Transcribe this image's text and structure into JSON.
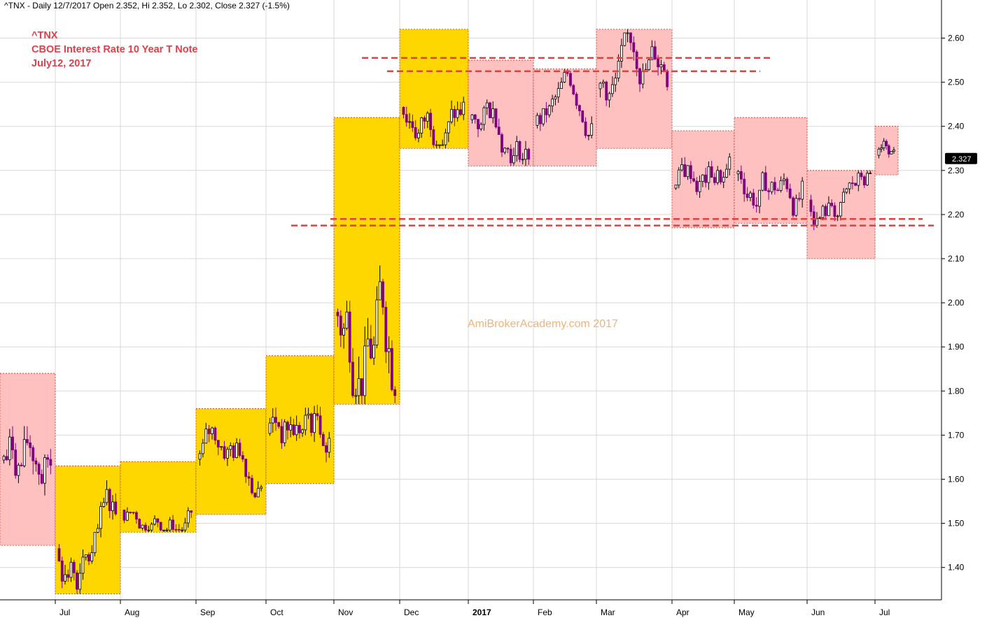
{
  "header": {
    "text": "^TNX - Daily 12/7/2017 Open 2.352, Hi 2.352, Lo 2.302, Close 2.327 (-1.5%)"
  },
  "annotation": {
    "line1": "^TNX",
    "line2": "CBOE Interest Rate 10 Year T Note",
    "line3": "July12, 2017"
  },
  "watermark": "AmiBrokerAcademy.com  2017",
  "colors": {
    "yellow_box": "#ffd700",
    "pink_box": "#ffc0c0",
    "box_border": "#c0392b",
    "up_candle": "#ffffff",
    "down_candle": "#800080",
    "dashed_line": "#e04040",
    "grid": "#d8d8d8",
    "last_price_bg": "#000000"
  },
  "chart_data": {
    "type": "candlestick",
    "ylim": [
      1.33,
      2.66
    ],
    "y_ticks": [
      1.4,
      1.5,
      1.6,
      1.7,
      1.8,
      1.9,
      2.0,
      2.1,
      2.2,
      2.3,
      2.4,
      2.5,
      2.6
    ],
    "x_labels": [
      "Jul",
      "Aug",
      "Sep",
      "Oct",
      "Nov",
      "Dec",
      "2017",
      "Feb",
      "Mar",
      "Apr",
      "May",
      "Jun",
      "Jul"
    ],
    "last_price": "2.327",
    "monthly_ranges": [
      {
        "period": "Jun 2016",
        "color": "pink",
        "high": 1.84,
        "low": 1.45
      },
      {
        "period": "Jul 2016",
        "color": "yellow",
        "high": 1.63,
        "low": 1.34
      },
      {
        "period": "Aug 2016",
        "color": "yellow",
        "high": 1.64,
        "low": 1.48
      },
      {
        "period": "Sep 2016",
        "color": "yellow",
        "high": 1.76,
        "low": 1.52
      },
      {
        "period": "Oct 2016",
        "color": "yellow",
        "high": 1.88,
        "low": 1.59
      },
      {
        "period": "Nov 2016",
        "color": "yellow",
        "high": 2.42,
        "low": 1.77
      },
      {
        "period": "Dec 2016",
        "color": "yellow",
        "high": 2.62,
        "low": 2.35
      },
      {
        "period": "Jan 2017",
        "color": "pink",
        "high": 2.55,
        "low": 2.31
      },
      {
        "period": "Feb 2017",
        "color": "pink",
        "high": 2.53,
        "low": 2.31
      },
      {
        "period": "Mar 2017",
        "color": "pink",
        "high": 2.62,
        "low": 2.35
      },
      {
        "period": "Apr 2017",
        "color": "pink",
        "high": 2.39,
        "low": 2.17
      },
      {
        "period": "May 2017",
        "color": "pink",
        "high": 2.42,
        "low": 2.18
      },
      {
        "period": "Jun 2017",
        "color": "pink",
        "high": 2.3,
        "low": 2.1
      },
      {
        "period": "Jul 2017",
        "color": "pink",
        "high": 2.4,
        "low": 2.29
      }
    ],
    "support_resistance": [
      2.555,
      2.525,
      2.19,
      2.175
    ]
  }
}
